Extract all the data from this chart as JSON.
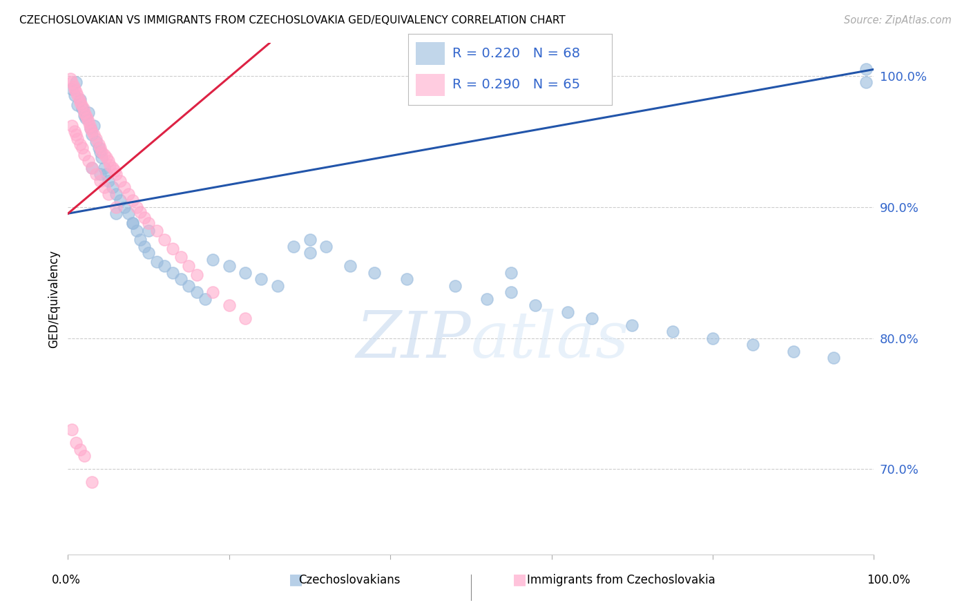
{
  "title": "CZECHOSLOVAKIAN VS IMMIGRANTS FROM CZECHOSLOVAKIA GED/EQUIVALENCY CORRELATION CHART",
  "source": "Source: ZipAtlas.com",
  "ylabel": "GED/Equivalency",
  "watermark": "ZIPatlas",
  "legend_blue_R": "R = 0.220",
  "legend_blue_N": "N = 68",
  "legend_pink_R": "R = 0.290",
  "legend_pink_N": "N = 65",
  "legend_blue_label": "Czechoslovakians",
  "legend_pink_label": "Immigrants from Czechoslovakia",
  "blue_color": "#99BBDD",
  "pink_color": "#FFAACC",
  "blue_edge_color": "#99BBDD",
  "pink_edge_color": "#FFAACC",
  "trendline_blue_color": "#2255AA",
  "trendline_pink_color": "#DD2244",
  "ytick_labels": [
    "70.0%",
    "80.0%",
    "90.0%",
    "100.0%"
  ],
  "ytick_values": [
    0.7,
    0.8,
    0.9,
    1.0
  ],
  "xmin": 0.0,
  "xmax": 1.0,
  "ymin": 0.635,
  "ymax": 1.025,
  "blue_trend_x0": 0.0,
  "blue_trend_y0": 0.895,
  "blue_trend_x1": 1.0,
  "blue_trend_y1": 1.005,
  "pink_trend_x0": 0.0,
  "pink_trend_y0": 0.895,
  "pink_trend_x1": 0.25,
  "pink_trend_y1": 1.025,
  "blue_scatter_x": [
    0.005,
    0.008,
    0.01,
    0.012,
    0.015,
    0.018,
    0.02,
    0.022,
    0.025,
    0.028,
    0.03,
    0.032,
    0.035,
    0.038,
    0.04,
    0.042,
    0.045,
    0.048,
    0.05,
    0.055,
    0.06,
    0.065,
    0.07,
    0.075,
    0.08,
    0.085,
    0.09,
    0.095,
    0.1,
    0.11,
    0.12,
    0.13,
    0.14,
    0.15,
    0.16,
    0.17,
    0.18,
    0.2,
    0.22,
    0.24,
    0.26,
    0.28,
    0.3,
    0.32,
    0.35,
    0.38,
    0.42,
    0.48,
    0.52,
    0.55,
    0.58,
    0.62,
    0.65,
    0.7,
    0.75,
    0.8,
    0.85,
    0.9,
    0.95,
    0.99,
    0.03,
    0.04,
    0.06,
    0.08,
    0.1,
    0.3,
    0.55,
    0.99
  ],
  "blue_scatter_y": [
    0.99,
    0.985,
    0.995,
    0.978,
    0.982,
    0.975,
    0.97,
    0.968,
    0.972,
    0.96,
    0.955,
    0.962,
    0.95,
    0.945,
    0.942,
    0.938,
    0.93,
    0.925,
    0.92,
    0.915,
    0.91,
    0.905,
    0.9,
    0.895,
    0.888,
    0.882,
    0.875,
    0.87,
    0.865,
    0.858,
    0.855,
    0.85,
    0.845,
    0.84,
    0.835,
    0.83,
    0.86,
    0.855,
    0.85,
    0.845,
    0.84,
    0.87,
    0.865,
    0.87,
    0.855,
    0.85,
    0.845,
    0.84,
    0.83,
    0.835,
    0.825,
    0.82,
    0.815,
    0.81,
    0.805,
    0.8,
    0.795,
    0.79,
    0.785,
    1.005,
    0.93,
    0.925,
    0.895,
    0.888,
    0.882,
    0.875,
    0.85,
    0.995
  ],
  "pink_scatter_x": [
    0.003,
    0.005,
    0.007,
    0.008,
    0.01,
    0.012,
    0.014,
    0.015,
    0.017,
    0.019,
    0.02,
    0.022,
    0.024,
    0.025,
    0.027,
    0.028,
    0.03,
    0.032,
    0.035,
    0.038,
    0.04,
    0.042,
    0.045,
    0.048,
    0.05,
    0.052,
    0.055,
    0.058,
    0.06,
    0.065,
    0.07,
    0.075,
    0.08,
    0.085,
    0.09,
    0.095,
    0.1,
    0.11,
    0.12,
    0.13,
    0.14,
    0.15,
    0.16,
    0.18,
    0.2,
    0.22,
    0.005,
    0.008,
    0.01,
    0.012,
    0.015,
    0.018,
    0.02,
    0.025,
    0.03,
    0.035,
    0.04,
    0.045,
    0.05,
    0.06,
    0.005,
    0.01,
    0.015,
    0.02,
    0.03
  ],
  "pink_scatter_y": [
    0.998,
    0.995,
    0.992,
    0.99,
    0.988,
    0.985,
    0.982,
    0.98,
    0.978,
    0.975,
    0.972,
    0.97,
    0.968,
    0.965,
    0.962,
    0.96,
    0.958,
    0.955,
    0.952,
    0.948,
    0.945,
    0.942,
    0.94,
    0.938,
    0.935,
    0.932,
    0.93,
    0.928,
    0.925,
    0.92,
    0.915,
    0.91,
    0.905,
    0.9,
    0.896,
    0.892,
    0.888,
    0.882,
    0.875,
    0.868,
    0.862,
    0.855,
    0.848,
    0.835,
    0.825,
    0.815,
    0.962,
    0.958,
    0.955,
    0.952,
    0.948,
    0.945,
    0.94,
    0.935,
    0.93,
    0.925,
    0.92,
    0.915,
    0.91,
    0.9,
    0.73,
    0.72,
    0.715,
    0.71,
    0.69
  ]
}
